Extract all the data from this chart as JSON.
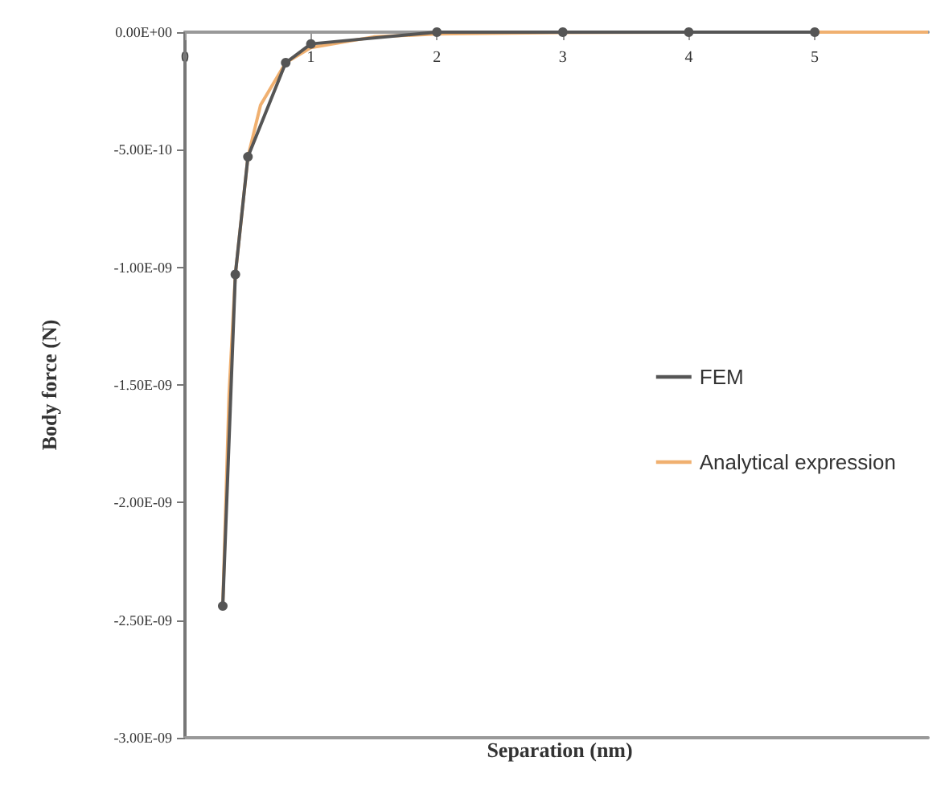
{
  "chart_data": {
    "type": "line",
    "xlabel": "Separation (nm)",
    "ylabel": "Body force (N)",
    "xlim": [
      0,
      5.9
    ],
    "xticks": [
      0,
      1,
      2,
      3,
      4,
      5
    ],
    "ylim": [
      -3e-09,
      0
    ],
    "yticks": [
      {
        "value": 0,
        "label": "0.00E+00"
      },
      {
        "value": -5e-10,
        "label": "-5.00E-10"
      },
      {
        "value": -1e-09,
        "label": "-1.00E-09"
      },
      {
        "value": -1.5e-09,
        "label": "-1.50E-09"
      },
      {
        "value": -2e-09,
        "label": "-2.00E-09"
      },
      {
        "value": -2.5e-09,
        "label": "-2.50E-09"
      },
      {
        "value": -3e-09,
        "label": "-3.00E-09"
      }
    ],
    "grid": false,
    "legend": "right",
    "series": [
      {
        "name": "FEM",
        "color": "#555555",
        "marker": "circle",
        "x": [
          0.3,
          0.4,
          0.5,
          0.8,
          1,
          2,
          3,
          4,
          5
        ],
        "values": [
          -2.44e-09,
          -1.03e-09,
          -5.3e-10,
          -1.3e-10,
          -5e-11,
          0,
          0,
          0,
          0
        ]
      },
      {
        "name": "Analytical expression",
        "color": "#f0b070",
        "marker": "none",
        "x": [
          0.3,
          0.35,
          0.4,
          0.5,
          0.6,
          0.8,
          1,
          1.5,
          2,
          3,
          4,
          5,
          5.9
        ],
        "values": [
          -2.44e-09,
          -1.54e-09,
          -1.03e-09,
          -5.3e-10,
          -3.1e-10,
          -1.3e-10,
          -6.6e-11,
          -2e-11,
          -8e-12,
          -2e-12,
          0,
          0,
          0
        ]
      }
    ]
  }
}
